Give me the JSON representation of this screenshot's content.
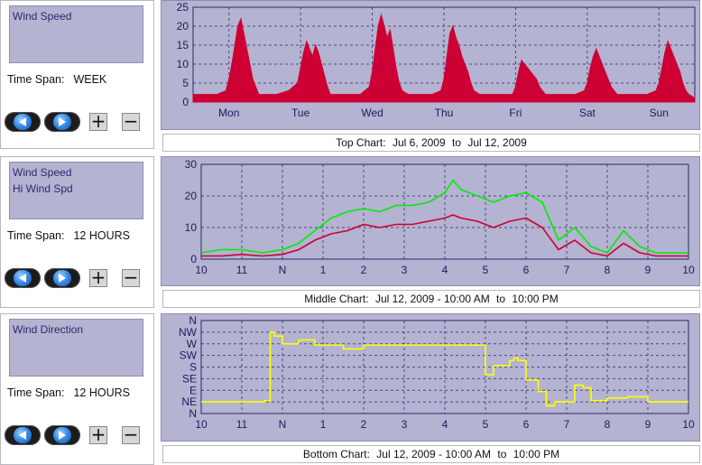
{
  "panels": [
    {
      "variables": [
        "Wind Speed"
      ],
      "time_span_label": "Time Span:",
      "time_span_value": "WEEK"
    },
    {
      "variables": [
        "Wind Speed",
        "Hi Wind Spd"
      ],
      "time_span_label": "Time Span:",
      "time_span_value": "12 HOURS"
    },
    {
      "variables": [
        "Wind Direction"
      ],
      "time_span_label": "Time Span:",
      "time_span_value": "12 HOURS"
    }
  ],
  "controls": {
    "plus": "+",
    "minus": "−"
  },
  "colors": {
    "plot_bg": "#b4b3d1",
    "wind_speed": "#cc0033",
    "hi_wind_speed": "#00ee00",
    "wind_direction": "#ffff00",
    "grid": "#4a4a88",
    "axis_text": "#1c1c5c"
  },
  "captions": [
    {
      "prefix": "Top Chart:",
      "start": "Jul 6, 2009",
      "to": "to",
      "end": "Jul 12, 2009"
    },
    {
      "prefix": "Middle Chart:",
      "start": "Jul 12, 2009 - 10:00 AM",
      "to": "to",
      "end": "10:00 PM"
    },
    {
      "prefix": "Bottom Chart:",
      "start": "Jul 12, 2009 - 10:00 AM",
      "to": "to",
      "end": "10:00 PM"
    }
  ],
  "chart_data": [
    {
      "type": "area",
      "x_labels": [
        "Mon",
        "Tue",
        "Wed",
        "Thu",
        "Fri",
        "Sat",
        "Sun"
      ],
      "yticks": [
        0,
        5,
        10,
        15,
        20,
        25
      ],
      "ylim": [
        0,
        25
      ],
      "xlim": [
        0,
        168
      ],
      "grid": true,
      "series": [
        {
          "name": "Wind Speed",
          "color": "#cc0033",
          "x": [
            0,
            4,
            8,
            11,
            12,
            13,
            14,
            15,
            16,
            17,
            18,
            19,
            20,
            21,
            22,
            24,
            28,
            32,
            35,
            36,
            37,
            38,
            39,
            40,
            41,
            42,
            43,
            44,
            45,
            46,
            48,
            52,
            56,
            59,
            60,
            61,
            62,
            63,
            64,
            65,
            66,
            67,
            68,
            69,
            70,
            72,
            76,
            80,
            83,
            84,
            85,
            86,
            87,
            88,
            89,
            90,
            91,
            92,
            93,
            94,
            96,
            100,
            104,
            107,
            108,
            109,
            110,
            111,
            112,
            113,
            114,
            115,
            116,
            117,
            118,
            120,
            124,
            128,
            131,
            132,
            133,
            134,
            135,
            136,
            137,
            138,
            139,
            140,
            141,
            142,
            144,
            148,
            152,
            155,
            156,
            157,
            158,
            159,
            160,
            161,
            162,
            163,
            164,
            165,
            166,
            168
          ],
          "y": [
            2,
            2,
            2,
            3,
            6,
            10,
            15,
            20,
            22,
            18,
            14,
            10,
            6,
            4,
            2,
            2,
            2,
            3,
            5,
            9,
            13,
            16,
            14,
            12,
            15,
            13,
            10,
            7,
            4,
            2,
            2,
            2,
            2,
            4,
            8,
            14,
            20,
            23,
            20,
            17,
            19,
            14,
            9,
            5,
            3,
            2,
            2,
            2,
            3,
            6,
            12,
            18,
            20,
            17,
            15,
            12,
            10,
            8,
            5,
            3,
            2,
            2,
            2,
            2,
            4,
            8,
            11,
            10,
            9,
            8,
            7,
            6,
            4,
            3,
            2,
            2,
            2,
            2,
            3,
            5,
            9,
            12,
            14,
            12,
            10,
            8,
            6,
            4,
            3,
            2,
            2,
            2,
            2,
            3,
            5,
            9,
            13,
            16,
            14,
            12,
            10,
            8,
            5,
            3,
            2,
            1
          ]
        }
      ]
    },
    {
      "type": "line",
      "x_labels": [
        "10",
        "11",
        "N",
        "1",
        "2",
        "3",
        "4",
        "5",
        "6",
        "7",
        "8",
        "9",
        "10"
      ],
      "yticks": [
        0,
        10,
        20,
        30
      ],
      "ylim": [
        0,
        30
      ],
      "xlim": [
        0,
        12
      ],
      "grid": true,
      "series": [
        {
          "name": "Wind Speed",
          "color": "#cc0033",
          "x": [
            0,
            0.5,
            1,
            1.5,
            2,
            2.4,
            2.8,
            3.2,
            3.6,
            4,
            4.4,
            4.8,
            5.2,
            5.6,
            6,
            6.2,
            6.4,
            6.8,
            7.2,
            7.6,
            8,
            8.4,
            8.8,
            9.2,
            9.6,
            10,
            10.4,
            10.8,
            11.2,
            11.6,
            12
          ],
          "y": [
            1,
            1,
            1.5,
            1,
            1.5,
            3,
            6,
            8,
            9,
            11,
            10,
            11,
            11,
            12,
            13,
            14,
            13,
            12,
            10,
            12,
            13,
            10,
            3,
            6,
            2,
            1,
            5,
            2,
            1,
            1,
            1
          ]
        },
        {
          "name": "Hi Wind Spd",
          "color": "#00ee00",
          "x": [
            0,
            0.5,
            1,
            1.5,
            2,
            2.4,
            2.8,
            3.2,
            3.6,
            4,
            4.4,
            4.8,
            5.2,
            5.6,
            6,
            6.2,
            6.4,
            6.8,
            7.2,
            7.6,
            8,
            8.4,
            8.8,
            9.2,
            9.6,
            10,
            10.4,
            10.8,
            11.2,
            11.6,
            12
          ],
          "y": [
            2,
            3,
            3,
            2,
            3,
            5,
            9,
            13,
            15,
            16,
            15,
            17,
            17,
            18,
            21,
            25,
            22,
            20,
            18,
            20,
            21,
            18,
            6,
            10,
            4,
            2,
            9,
            4,
            2,
            2,
            2
          ]
        }
      ]
    },
    {
      "type": "line",
      "y_categories": [
        "N",
        "NE",
        "E",
        "SE",
        "S",
        "SW",
        "W",
        "NW",
        "N"
      ],
      "ylim": [
        0,
        360
      ],
      "xlim": [
        0,
        12
      ],
      "x_labels": [
        "10",
        "11",
        "N",
        "1",
        "2",
        "3",
        "4",
        "5",
        "6",
        "7",
        "8",
        "9",
        "10"
      ],
      "grid": true,
      "series": [
        {
          "name": "Wind Direction",
          "color": "#ffff00",
          "x": [
            0,
            0.5,
            1,
            1.5,
            1.55,
            1.7,
            1.8,
            2,
            2.2,
            2.4,
            2.6,
            2.8,
            3,
            3.5,
            4,
            4.5,
            5,
            5.5,
            6,
            6.05,
            6.5,
            7,
            7.2,
            7.4,
            7.6,
            7.7,
            7.8,
            8,
            8.3,
            8.5,
            8.7,
            8.9,
            9.2,
            9.4,
            9.6,
            10,
            10.5,
            11,
            11.5,
            12
          ],
          "y": [
            45,
            45,
            45,
            45,
            50,
            315,
            300,
            270,
            270,
            285,
            285,
            265,
            265,
            250,
            265,
            265,
            265,
            265,
            265,
            265,
            265,
            150,
            185,
            185,
            205,
            215,
            205,
            130,
            85,
            30,
            45,
            45,
            110,
            100,
            50,
            60,
            65,
            45,
            45,
            45
          ]
        }
      ]
    }
  ]
}
